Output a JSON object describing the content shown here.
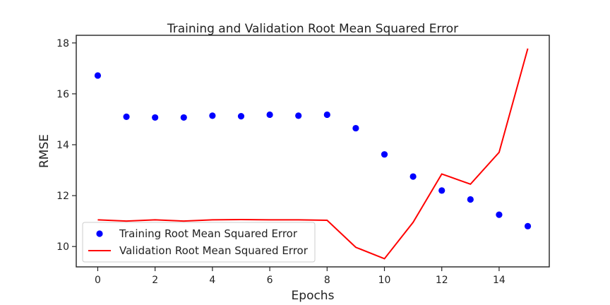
{
  "chart_data": {
    "type": "line",
    "title": "Training and Validation Root Mean Squared Error",
    "xlabel": "Epochs",
    "ylabel": "RMSE",
    "xlim": [
      -0.75,
      15.75
    ],
    "ylim": [
      9.2,
      18.3
    ],
    "x_ticks": [
      0,
      2,
      4,
      6,
      8,
      10,
      12,
      14
    ],
    "y_ticks": [
      10,
      12,
      14,
      16,
      18
    ],
    "grid": false,
    "legend_position": "lower-left",
    "series": [
      {
        "name": "Training Root Mean Squared Error",
        "kind": "scatter",
        "color": "#0000ff",
        "x": [
          0,
          1,
          2,
          3,
          4,
          5,
          6,
          7,
          8,
          9,
          10,
          11,
          12,
          13,
          14,
          15
        ],
        "values": [
          16.72,
          15.1,
          15.07,
          15.07,
          15.14,
          15.12,
          15.18,
          15.14,
          15.18,
          14.65,
          13.62,
          12.75,
          12.2,
          11.85,
          11.25,
          10.8
        ]
      },
      {
        "name": "Validation Root Mean Squared Error",
        "kind": "line",
        "color": "#ff0000",
        "x": [
          0,
          1,
          2,
          3,
          4,
          5,
          6,
          7,
          8,
          9,
          10,
          11,
          12,
          13,
          14,
          15
        ],
        "values": [
          11.05,
          11.0,
          11.05,
          11.0,
          11.05,
          11.06,
          11.05,
          11.05,
          11.03,
          9.97,
          9.52,
          10.95,
          12.85,
          12.45,
          13.7,
          17.78
        ]
      }
    ]
  }
}
